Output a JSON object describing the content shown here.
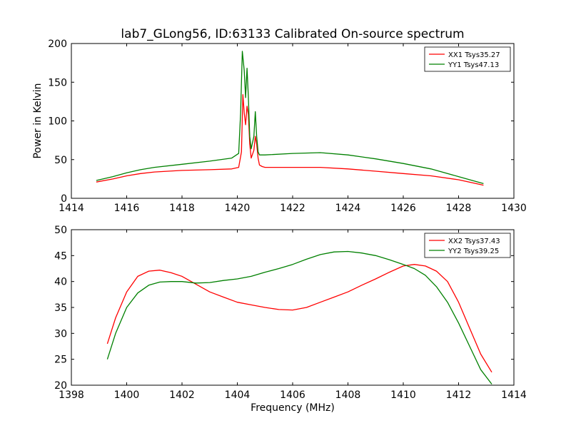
{
  "figure": {
    "title": "lab7_GLong56, ID:63133 Calibrated On-source spectrum"
  },
  "chart_data": [
    {
      "type": "line",
      "title": "lab7_GLong56, ID:63133 Calibrated On-source spectrum",
      "xlabel": "",
      "ylabel": "Power in Kelvin",
      "xlim": [
        1414,
        1430
      ],
      "ylim": [
        0,
        200
      ],
      "xticks": [
        1414,
        1416,
        1418,
        1420,
        1422,
        1424,
        1426,
        1428,
        1430
      ],
      "yticks": [
        0,
        50,
        100,
        150,
        200
      ],
      "grid": false,
      "legend_position": "top-right",
      "series": [
        {
          "name": "XX1 Tsys35.27",
          "color": "#ff0000",
          "x": [
            1414.9,
            1415.5,
            1416.0,
            1416.5,
            1417.0,
            1418.0,
            1419.0,
            1419.8,
            1420.05,
            1420.15,
            1420.2,
            1420.25,
            1420.3,
            1420.35,
            1420.4,
            1420.45,
            1420.5,
            1420.6,
            1420.65,
            1420.7,
            1420.75,
            1420.8,
            1420.9,
            1421.0,
            1422.0,
            1423.0,
            1424.0,
            1425.0,
            1426.0,
            1427.0,
            1428.0,
            1428.9
          ],
          "y": [
            21,
            25,
            29,
            32,
            34,
            36,
            37,
            38,
            40,
            60,
            134,
            110,
            95,
            119,
            108,
            70,
            52,
            62,
            80,
            70,
            52,
            43,
            41,
            40,
            40,
            40,
            38,
            35,
            32,
            29,
            24,
            17
          ]
        },
        {
          "name": "YY1 Tsys47.13",
          "color": "#008000",
          "x": [
            1414.9,
            1415.5,
            1416.0,
            1416.5,
            1417.0,
            1418.0,
            1419.0,
            1419.8,
            1420.05,
            1420.12,
            1420.18,
            1420.25,
            1420.3,
            1420.35,
            1420.4,
            1420.45,
            1420.5,
            1420.6,
            1420.65,
            1420.7,
            1420.75,
            1420.8,
            1420.9,
            1421.0,
            1422.0,
            1423.0,
            1424.0,
            1425.0,
            1426.0,
            1427.0,
            1428.0,
            1428.9
          ],
          "y": [
            23,
            28,
            33,
            37,
            40,
            44,
            48,
            52,
            58,
            110,
            190,
            165,
            130,
            168,
            130,
            80,
            64,
            80,
            112,
            80,
            60,
            56,
            56,
            56,
            58,
            59,
            56,
            51,
            45,
            38,
            28,
            19
          ]
        }
      ]
    },
    {
      "type": "line",
      "title": "",
      "xlabel": "Frequency (MHz)",
      "ylabel": "",
      "xlim": [
        1398,
        1414
      ],
      "ylim": [
        20,
        50
      ],
      "xticks": [
        1398,
        1400,
        1402,
        1404,
        1406,
        1408,
        1410,
        1412,
        1414
      ],
      "yticks": [
        20,
        25,
        30,
        35,
        40,
        45,
        50
      ],
      "grid": false,
      "legend_position": "top-right",
      "series": [
        {
          "name": "XX2 Tsys37.43",
          "color": "#ff0000",
          "x": [
            1399.3,
            1399.6,
            1400.0,
            1400.4,
            1400.8,
            1401.2,
            1401.6,
            1402.0,
            1402.5,
            1403.0,
            1403.5,
            1404.0,
            1404.5,
            1405.0,
            1405.5,
            1406.0,
            1406.5,
            1407.0,
            1407.5,
            1408.0,
            1408.5,
            1409.0,
            1409.5,
            1410.0,
            1410.4,
            1410.8,
            1411.2,
            1411.6,
            1412.0,
            1412.4,
            1412.8,
            1413.2
          ],
          "y": [
            28,
            33,
            38,
            41,
            42,
            42.2,
            41.7,
            41,
            39.5,
            38,
            37,
            36,
            35.5,
            35,
            34.6,
            34.5,
            35,
            36,
            37,
            38,
            39.3,
            40.5,
            41.8,
            43,
            43.3,
            43,
            42,
            40,
            36,
            31,
            26,
            22.5
          ]
        },
        {
          "name": "YY2 Tsys39.25",
          "color": "#008000",
          "x": [
            1399.3,
            1399.6,
            1400.0,
            1400.4,
            1400.8,
            1401.2,
            1401.6,
            1402.0,
            1402.5,
            1403.0,
            1403.5,
            1404.0,
            1404.5,
            1405.0,
            1405.5,
            1406.0,
            1406.5,
            1407.0,
            1407.5,
            1408.0,
            1408.5,
            1409.0,
            1409.5,
            1410.0,
            1410.4,
            1410.8,
            1411.2,
            1411.6,
            1412.0,
            1412.4,
            1412.8,
            1413.2
          ],
          "y": [
            25,
            30,
            35,
            37.8,
            39.3,
            39.9,
            40,
            40,
            39.7,
            39.8,
            40.2,
            40.5,
            41,
            41.8,
            42.5,
            43.3,
            44.3,
            45.2,
            45.7,
            45.8,
            45.5,
            45,
            44.2,
            43.3,
            42.5,
            41.2,
            39,
            36,
            32,
            27.5,
            23,
            20.2
          ]
        }
      ]
    }
  ]
}
